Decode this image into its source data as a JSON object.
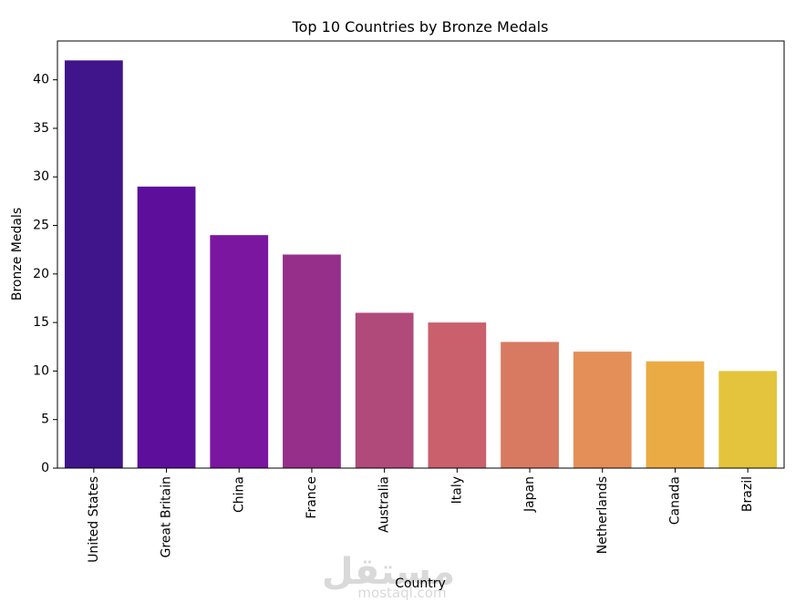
{
  "chart_data": {
    "type": "bar",
    "title": "Top 10 Countries by Bronze Medals",
    "xlabel": "Country",
    "ylabel": "Bronze Medals",
    "categories": [
      "United States",
      "Great Britain",
      "China",
      "France",
      "Australia",
      "Italy",
      "Japan",
      "Netherlands",
      "Canada",
      "Brazil"
    ],
    "values": [
      42,
      29,
      24,
      22,
      16,
      15,
      13,
      12,
      11,
      10
    ],
    "colors": [
      "#40148a",
      "#5d0f9c",
      "#7b16a0",
      "#962f8a",
      "#b04a7b",
      "#c9606c",
      "#d87a62",
      "#e48f58",
      "#ebab44",
      "#e3c43c"
    ],
    "ylim": [
      0,
      44
    ],
    "yticks": [
      0,
      5,
      10,
      15,
      20,
      25,
      30,
      35,
      40
    ],
    "grid": false,
    "legend": "none"
  },
  "watermark": {
    "logo_text": "مستقل",
    "url_text": "mostaql.com"
  }
}
